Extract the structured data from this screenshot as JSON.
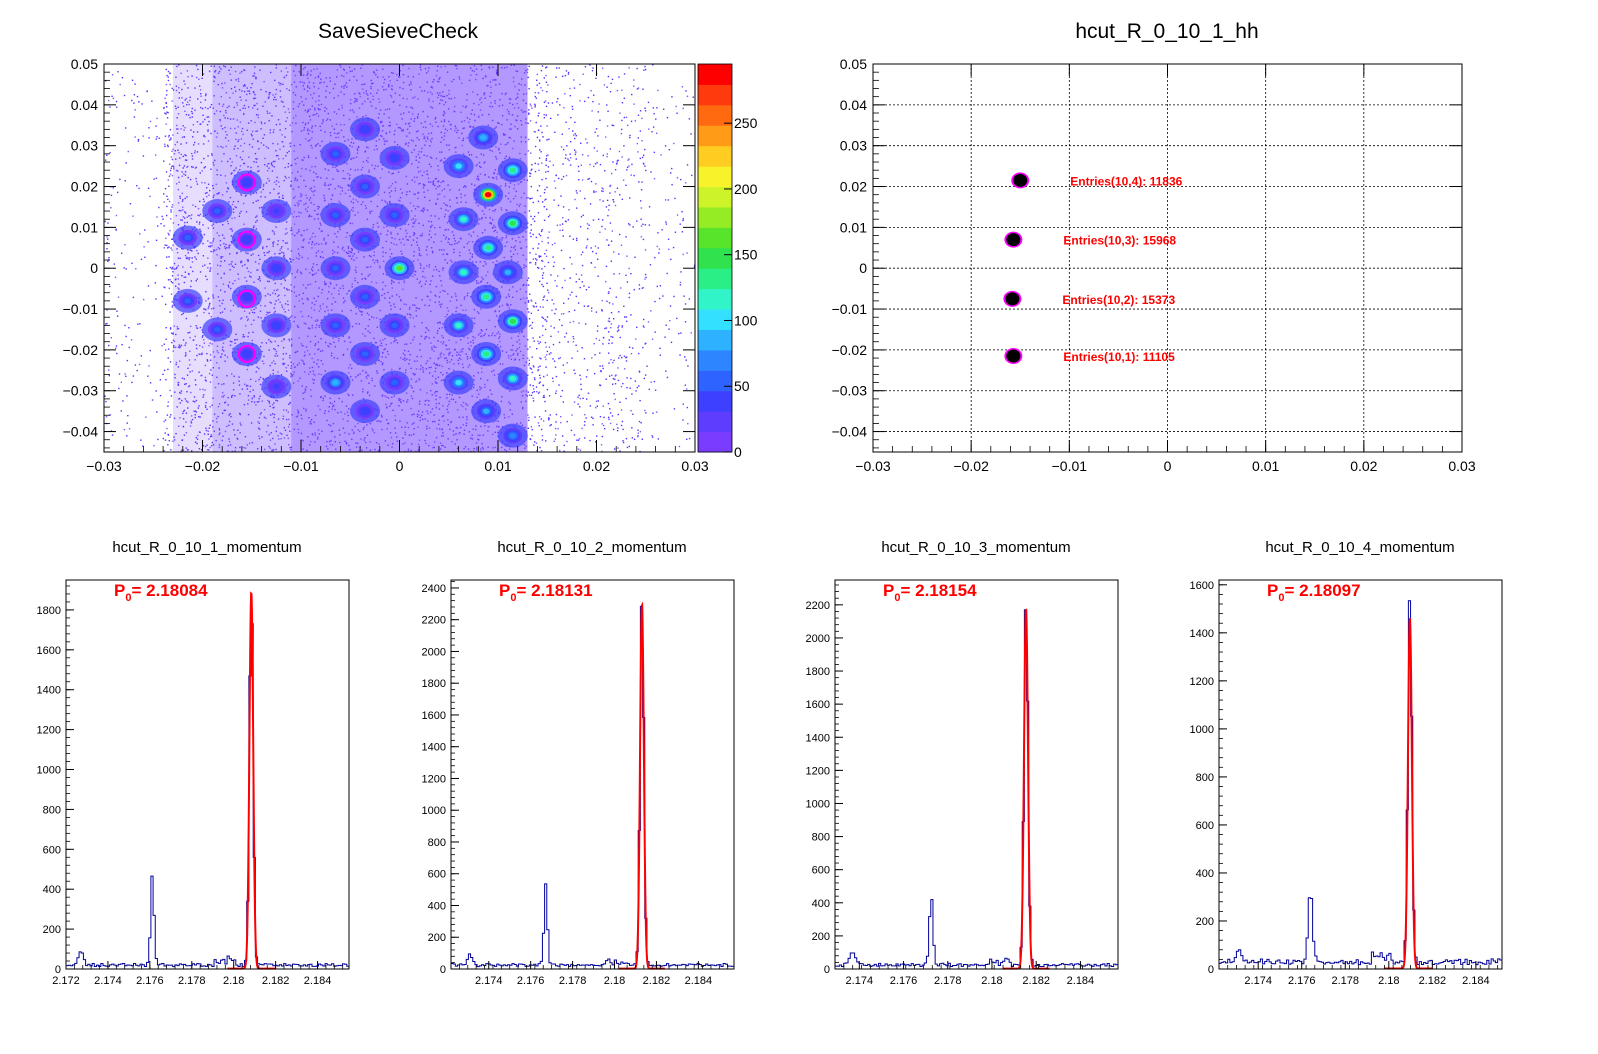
{
  "colors": {
    "histogram": "#000099",
    "fit": "#ff0000",
    "label": "#ff0000",
    "grid": "#000000",
    "palette": [
      "#7a3dff",
      "#5f3dff",
      "#3d41ff",
      "#2f63ff",
      "#2d86ff",
      "#2eb2ff",
      "#33e0ff",
      "#31f5c8",
      "#29ef86",
      "#2fe24e",
      "#57e42a",
      "#95ec24",
      "#cdf329",
      "#f7f229",
      "#ffcc22",
      "#ff9b17",
      "#ff6a11",
      "#ff3a0d",
      "#ff0000"
    ],
    "circle_marker": "#ff00ff"
  },
  "chart_data": [
    {
      "id": "savesievecheck",
      "type": "heatmap",
      "title": "SaveSieveCheck",
      "xlim": [
        -0.03,
        0.03
      ],
      "ylim": [
        -0.045,
        0.05
      ],
      "x_ticks": [
        "−0.03",
        "−0.02",
        "−0.01",
        "0",
        "0.01",
        "0.02",
        "0.03"
      ],
      "x_tick_values": [
        -0.03,
        -0.02,
        -0.01,
        0,
        0.01,
        0.02,
        0.03
      ],
      "y_ticks": [
        "0.05",
        "0.04",
        "0.03",
        "0.02",
        "0.01",
        "0",
        "−0.01",
        "−0.02",
        "−0.03",
        "−0.04"
      ],
      "y_tick_values": [
        0.05,
        0.04,
        0.03,
        0.02,
        0.01,
        0,
        -0.01,
        -0.02,
        -0.03,
        -0.04
      ],
      "z_ticks": [
        "250",
        "200",
        "150",
        "100",
        "50",
        "0"
      ],
      "z_tick_values": [
        250,
        200,
        150,
        100,
        50,
        0
      ],
      "zlim": [
        0,
        295
      ],
      "spots": [
        {
          "x": -0.0215,
          "y": 0.0075,
          "z": 60
        },
        {
          "x": -0.0215,
          "y": -0.008,
          "z": 60
        },
        {
          "x": -0.0185,
          "y": 0.014,
          "z": 55
        },
        {
          "x": -0.0185,
          "y": -0.015,
          "z": 55
        },
        {
          "x": -0.0155,
          "y": 0.021,
          "z": 45
        },
        {
          "x": -0.0155,
          "y": 0.007,
          "z": 45
        },
        {
          "x": -0.0155,
          "y": -0.007,
          "z": 45
        },
        {
          "x": -0.0155,
          "y": -0.021,
          "z": 45
        },
        {
          "x": -0.0125,
          "y": 0.014,
          "z": 40
        },
        {
          "x": -0.0125,
          "y": 0.0,
          "z": 45
        },
        {
          "x": -0.0125,
          "y": -0.014,
          "z": 45
        },
        {
          "x": -0.0125,
          "y": -0.029,
          "z": 40
        },
        {
          "x": -0.0065,
          "y": 0.028,
          "z": 55
        },
        {
          "x": -0.0065,
          "y": 0.013,
          "z": 55
        },
        {
          "x": -0.0065,
          "y": 0.0,
          "z": 60
        },
        {
          "x": -0.0065,
          "y": -0.014,
          "z": 55
        },
        {
          "x": -0.0065,
          "y": -0.028,
          "z": 85
        },
        {
          "x": -0.0035,
          "y": 0.034,
          "z": 45
        },
        {
          "x": -0.0035,
          "y": 0.02,
          "z": 55
        },
        {
          "x": -0.0035,
          "y": 0.007,
          "z": 55
        },
        {
          "x": -0.0035,
          "y": -0.007,
          "z": 55
        },
        {
          "x": -0.0035,
          "y": -0.021,
          "z": 55
        },
        {
          "x": -0.0035,
          "y": -0.035,
          "z": 45
        },
        {
          "x": -0.0005,
          "y": 0.027,
          "z": 45
        },
        {
          "x": -0.0005,
          "y": 0.013,
          "z": 60
        },
        {
          "x": 0.0,
          "y": 0.0,
          "z": 160
        },
        {
          "x": -0.0005,
          "y": -0.014,
          "z": 60
        },
        {
          "x": -0.0005,
          "y": -0.028,
          "z": 60
        },
        {
          "x": 0.006,
          "y": 0.025,
          "z": 100
        },
        {
          "x": 0.0065,
          "y": 0.012,
          "z": 110
        },
        {
          "x": 0.0065,
          "y": -0.001,
          "z": 110
        },
        {
          "x": 0.006,
          "y": -0.014,
          "z": 110
        },
        {
          "x": 0.006,
          "y": -0.028,
          "z": 100
        },
        {
          "x": 0.0085,
          "y": 0.032,
          "z": 90
        },
        {
          "x": 0.009,
          "y": 0.018,
          "z": 290
        },
        {
          "x": 0.009,
          "y": 0.005,
          "z": 130
        },
        {
          "x": 0.0088,
          "y": -0.007,
          "z": 130
        },
        {
          "x": 0.0088,
          "y": -0.021,
          "z": 130
        },
        {
          "x": 0.0088,
          "y": -0.035,
          "z": 80
        },
        {
          "x": 0.0115,
          "y": 0.024,
          "z": 130
        },
        {
          "x": 0.0115,
          "y": 0.011,
          "z": 150
        },
        {
          "x": 0.011,
          "y": -0.001,
          "z": 80
        },
        {
          "x": 0.0115,
          "y": -0.013,
          "z": 150
        },
        {
          "x": 0.0115,
          "y": -0.027,
          "z": 120
        },
        {
          "x": 0.0115,
          "y": -0.041,
          "z": 70
        }
      ],
      "circles": [
        {
          "x": -0.0155,
          "y": 0.021
        },
        {
          "x": -0.0155,
          "y": 0.007
        },
        {
          "x": -0.0155,
          "y": -0.0075
        },
        {
          "x": -0.0155,
          "y": -0.021
        }
      ]
    },
    {
      "id": "hh",
      "type": "scatter",
      "title": "hcut_R_0_10_1_hh",
      "xlim": [
        -0.03,
        0.03
      ],
      "ylim": [
        -0.045,
        0.05
      ],
      "grid": true,
      "x_ticks": [
        "−0.03",
        "−0.02",
        "−0.01",
        "0",
        "0.01",
        "0.02",
        "0.03"
      ],
      "x_tick_values": [
        -0.03,
        -0.02,
        -0.01,
        0,
        0.01,
        0.02,
        0.03
      ],
      "y_ticks": [
        "0.05",
        "0.04",
        "0.03",
        "0.02",
        "0.01",
        "0",
        "−0.01",
        "−0.02",
        "−0.03",
        "−0.04"
      ],
      "y_tick_values": [
        0.05,
        0.04,
        0.03,
        0.02,
        0.01,
        0,
        -0.01,
        -0.02,
        -0.03,
        -0.04
      ],
      "points": [
        {
          "x": -0.015,
          "y": 0.0215,
          "label": "Entries(10,4): 11836"
        },
        {
          "x": -0.0157,
          "y": 0.007,
          "label": "Entries(10,3): 15968"
        },
        {
          "x": -0.0158,
          "y": -0.0075,
          "label": "Entries(10,2): 15373"
        },
        {
          "x": -0.0157,
          "y": -0.0215,
          "label": "Entries(10,1): 11105"
        }
      ]
    },
    {
      "id": "m1",
      "type": "line",
      "title": "hcut_R_0_10_1_momentum",
      "annotation_main": "P",
      "annotation_sub": "0",
      "annotation_value": "= 2.18084",
      "xlim": [
        2.172,
        2.1855
      ],
      "ylim": [
        0,
        1950
      ],
      "x_ticks": [
        "2.172",
        "2.174",
        "2.176",
        "2.178",
        "2.18",
        "2.182",
        "2.184"
      ],
      "x_tick_values": [
        2.172,
        2.174,
        2.176,
        2.178,
        2.18,
        2.182,
        2.184
      ],
      "y_ticks": [
        "1800",
        "1600",
        "1400",
        "1200",
        "1000",
        "800",
        "600",
        "400",
        "200",
        "0"
      ],
      "y_tick_values": [
        1800,
        1600,
        1400,
        1200,
        1000,
        800,
        600,
        400,
        200,
        0
      ],
      "background": 20,
      "peaks": [
        {
          "x": 2.1727,
          "h": 70,
          "w": 0.00012
        },
        {
          "x": 2.17612,
          "h": 450,
          "w": 8e-05
        },
        {
          "x": 2.18084,
          "h": 1880,
          "w": 9e-05
        }
      ],
      "fit": {
        "mu": 2.18084,
        "sigma": 9e-05,
        "amp": 1890,
        "range": [
          2.1797,
          2.182
        ]
      }
    },
    {
      "id": "m2",
      "type": "line",
      "title": "hcut_R_0_10_2_momentum",
      "annotation_main": "P",
      "annotation_sub": "0",
      "annotation_value": "= 2.18131",
      "xlim": [
        2.1722,
        2.1857
      ],
      "ylim": [
        0,
        2450
      ],
      "x_ticks": [
        "2.174",
        "2.176",
        "2.178",
        "2.18",
        "2.182",
        "2.184"
      ],
      "x_tick_values": [
        2.174,
        2.176,
        2.178,
        2.18,
        2.182,
        2.184
      ],
      "y_ticks": [
        "2400",
        "2200",
        "2000",
        "1800",
        "1600",
        "1400",
        "1200",
        "1000",
        "800",
        "600",
        "400",
        "200",
        "0"
      ],
      "y_tick_values": [
        2400,
        2200,
        2000,
        1800,
        1600,
        1400,
        1200,
        1000,
        800,
        600,
        400,
        200,
        0
      ],
      "background": 25,
      "peaks": [
        {
          "x": 2.1731,
          "h": 70,
          "w": 0.00012
        },
        {
          "x": 2.17672,
          "h": 510,
          "w": 8e-05
        },
        {
          "x": 2.18131,
          "h": 2330,
          "w": 9e-05
        }
      ],
      "fit": {
        "mu": 2.18131,
        "sigma": 9e-05,
        "amp": 2300,
        "range": [
          2.1802,
          2.1824
        ]
      }
    },
    {
      "id": "m3",
      "type": "line",
      "title": "hcut_R_0_10_3_momentum",
      "annotation_main": "P",
      "annotation_sub": "0",
      "annotation_value": "= 2.18154",
      "xlim": [
        2.1729,
        2.1857
      ],
      "ylim": [
        0,
        2350
      ],
      "x_ticks": [
        "2.174",
        "2.176",
        "2.178",
        "2.18",
        "2.182",
        "2.184"
      ],
      "x_tick_values": [
        2.174,
        2.176,
        2.178,
        2.18,
        2.182,
        2.184
      ],
      "y_ticks": [
        "2200",
        "2000",
        "1800",
        "1600",
        "1400",
        "1200",
        "1000",
        "800",
        "600",
        "400",
        "200",
        "0"
      ],
      "y_tick_values": [
        2200,
        2000,
        1800,
        1600,
        1400,
        1200,
        1000,
        800,
        600,
        400,
        200,
        0
      ],
      "background": 25,
      "peaks": [
        {
          "x": 2.1737,
          "h": 80,
          "w": 0.00012
        },
        {
          "x": 2.17725,
          "h": 420,
          "w": 8e-05
        },
        {
          "x": 2.18154,
          "h": 2230,
          "w": 9e-05
        }
      ],
      "fit": {
        "mu": 2.18154,
        "sigma": 9e-05,
        "amp": 2180,
        "range": [
          2.1805,
          2.1826
        ]
      }
    },
    {
      "id": "m4",
      "type": "line",
      "title": "hcut_R_0_10_4_momentum",
      "annotation_main": "P",
      "annotation_sub": "0",
      "annotation_value": "= 2.18097",
      "xlim": [
        2.1722,
        2.1852
      ],
      "ylim": [
        0,
        1620
      ],
      "x_ticks": [
        "2.174",
        "2.176",
        "2.178",
        "2.18",
        "2.182",
        "2.184"
      ],
      "x_tick_values": [
        2.174,
        2.176,
        2.178,
        2.18,
        2.182,
        2.184
      ],
      "y_ticks": [
        "1600",
        "1400",
        "1200",
        "1000",
        "800",
        "600",
        "400",
        "200",
        "0"
      ],
      "y_tick_values": [
        1600,
        1400,
        1200,
        1000,
        800,
        600,
        400,
        200,
        0
      ],
      "background": 30,
      "peaks": [
        {
          "x": 2.1731,
          "h": 60,
          "w": 0.00012
        },
        {
          "x": 2.1764,
          "h": 300,
          "w": 0.0001
        },
        {
          "x": 2.18097,
          "h": 1530,
          "w": 9e-05
        }
      ],
      "fit": {
        "mu": 2.18097,
        "sigma": 9e-05,
        "amp": 1460,
        "range": [
          2.1798,
          2.182
        ]
      }
    }
  ]
}
